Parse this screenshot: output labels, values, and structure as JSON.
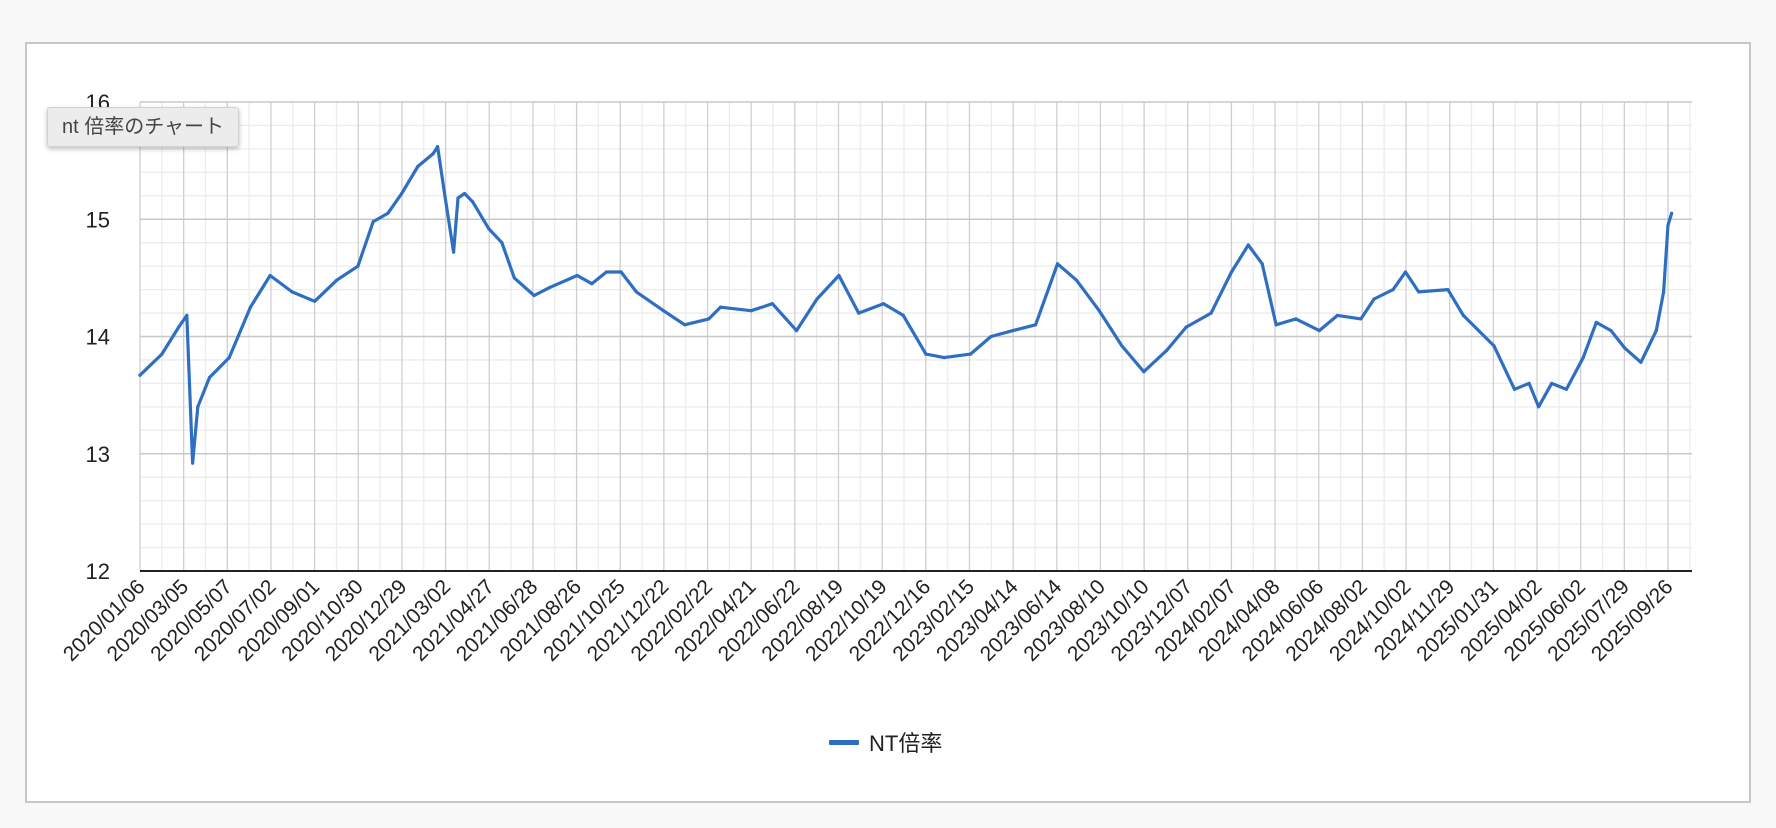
{
  "tooltip": {
    "text": "nt 倍率のチャート"
  },
  "legend": {
    "label": "NT倍率",
    "color": "#2f6fc1"
  },
  "chart_data": {
    "type": "line",
    "title": "",
    "xlabel": "",
    "ylabel": "",
    "ylim": [
      12,
      16
    ],
    "y_ticks": [
      12,
      13,
      14,
      15,
      16
    ],
    "y_minor_step": 0.2,
    "grid": true,
    "legend_position": "bottom",
    "x_tick_labels": [
      "2020/01/06",
      "2020/03/05",
      "2020/05/07",
      "2020/07/02",
      "2020/09/01",
      "2020/10/30",
      "2020/12/29",
      "2021/03/02",
      "2021/04/27",
      "2021/06/28",
      "2021/08/26",
      "2021/10/25",
      "2021/12/22",
      "2022/02/22",
      "2022/04/21",
      "2022/06/22",
      "2022/08/19",
      "2022/10/19",
      "2022/12/16",
      "2023/02/15",
      "2023/04/14",
      "2023/06/14",
      "2023/08/10",
      "2023/10/10",
      "2023/12/07",
      "2024/02/07",
      "2024/04/08",
      "2024/06/06",
      "2024/08/02",
      "2024/10/02",
      "2024/11/29",
      "2025/01/31",
      "2025/04/02",
      "2025/06/02",
      "2025/07/29",
      "2025/09/26"
    ],
    "series": [
      {
        "name": "NT倍率",
        "color": "#2f6fc1",
        "x": [
          "2020/01/06",
          "2020/02/05",
          "2020/02/28",
          "2020/03/10",
          "2020/03/18",
          "2020/03/25",
          "2020/04/10",
          "2020/05/07",
          "2020/06/05",
          "2020/07/02",
          "2020/08/01",
          "2020/09/01",
          "2020/10/01",
          "2020/10/30",
          "2020/11/20",
          "2020/12/10",
          "2020/12/29",
          "2021/01/20",
          "2021/02/10",
          "2021/02/16",
          "2021/02/26",
          "2021/03/10",
          "2021/03/16",
          "2021/03/25",
          "2021/04/05",
          "2021/04/27",
          "2021/05/15",
          "2021/06/01",
          "2021/06/28",
          "2021/07/20",
          "2021/08/26",
          "2021/09/15",
          "2021/10/05",
          "2021/10/25",
          "2021/11/15",
          "2021/12/22",
          "2022/01/20",
          "2022/02/22",
          "2022/03/10",
          "2022/04/21",
          "2022/05/20",
          "2022/06/22",
          "2022/07/20",
          "2022/08/19",
          "2022/09/15",
          "2022/10/19",
          "2022/11/15",
          "2022/12/16",
          "2023/01/10",
          "2023/02/15",
          "2023/03/15",
          "2023/04/14",
          "2023/05/15",
          "2023/06/14",
          "2023/07/10",
          "2023/08/10",
          "2023/09/10",
          "2023/10/10",
          "2023/11/10",
          "2023/12/07",
          "2024/01/10",
          "2024/02/07",
          "2024/03/01",
          "2024/03/20",
          "2024/04/08",
          "2024/05/05",
          "2024/06/06",
          "2024/07/01",
          "2024/08/02",
          "2024/08/20",
          "2024/09/15",
          "2024/10/02",
          "2024/10/20",
          "2024/11/29",
          "2024/12/20",
          "2025/01/31",
          "2025/02/28",
          "2025/03/20",
          "2025/04/02",
          "2025/04/20",
          "2025/05/10",
          "2025/06/02",
          "2025/06/20",
          "2025/07/10",
          "2025/07/29",
          "2025/08/20",
          "2025/09/10",
          "2025/09/20",
          "2025/09/26",
          "2025/10/01"
        ],
        "values": [
          13.67,
          13.85,
          14.08,
          14.18,
          12.92,
          13.4,
          13.65,
          13.82,
          14.25,
          14.52,
          14.38,
          14.3,
          14.48,
          14.6,
          14.98,
          15.05,
          15.22,
          15.45,
          15.56,
          15.62,
          15.2,
          14.72,
          15.18,
          15.22,
          15.15,
          14.92,
          14.8,
          14.5,
          14.35,
          14.42,
          14.52,
          14.45,
          14.55,
          14.55,
          14.38,
          14.22,
          14.1,
          14.15,
          14.25,
          14.22,
          14.28,
          14.05,
          14.32,
          14.52,
          14.2,
          14.28,
          14.18,
          13.85,
          13.82,
          13.85,
          14.0,
          14.05,
          14.1,
          14.62,
          14.48,
          14.22,
          13.92,
          13.7,
          13.88,
          14.08,
          14.2,
          14.55,
          14.78,
          14.62,
          14.1,
          14.15,
          14.05,
          14.18,
          14.15,
          14.32,
          14.4,
          14.55,
          14.38,
          14.4,
          14.18,
          13.92,
          13.55,
          13.6,
          13.4,
          13.6,
          13.55,
          13.82,
          14.12,
          14.05,
          13.9,
          13.78,
          14.05,
          14.38,
          14.95,
          15.05
        ]
      }
    ]
  }
}
